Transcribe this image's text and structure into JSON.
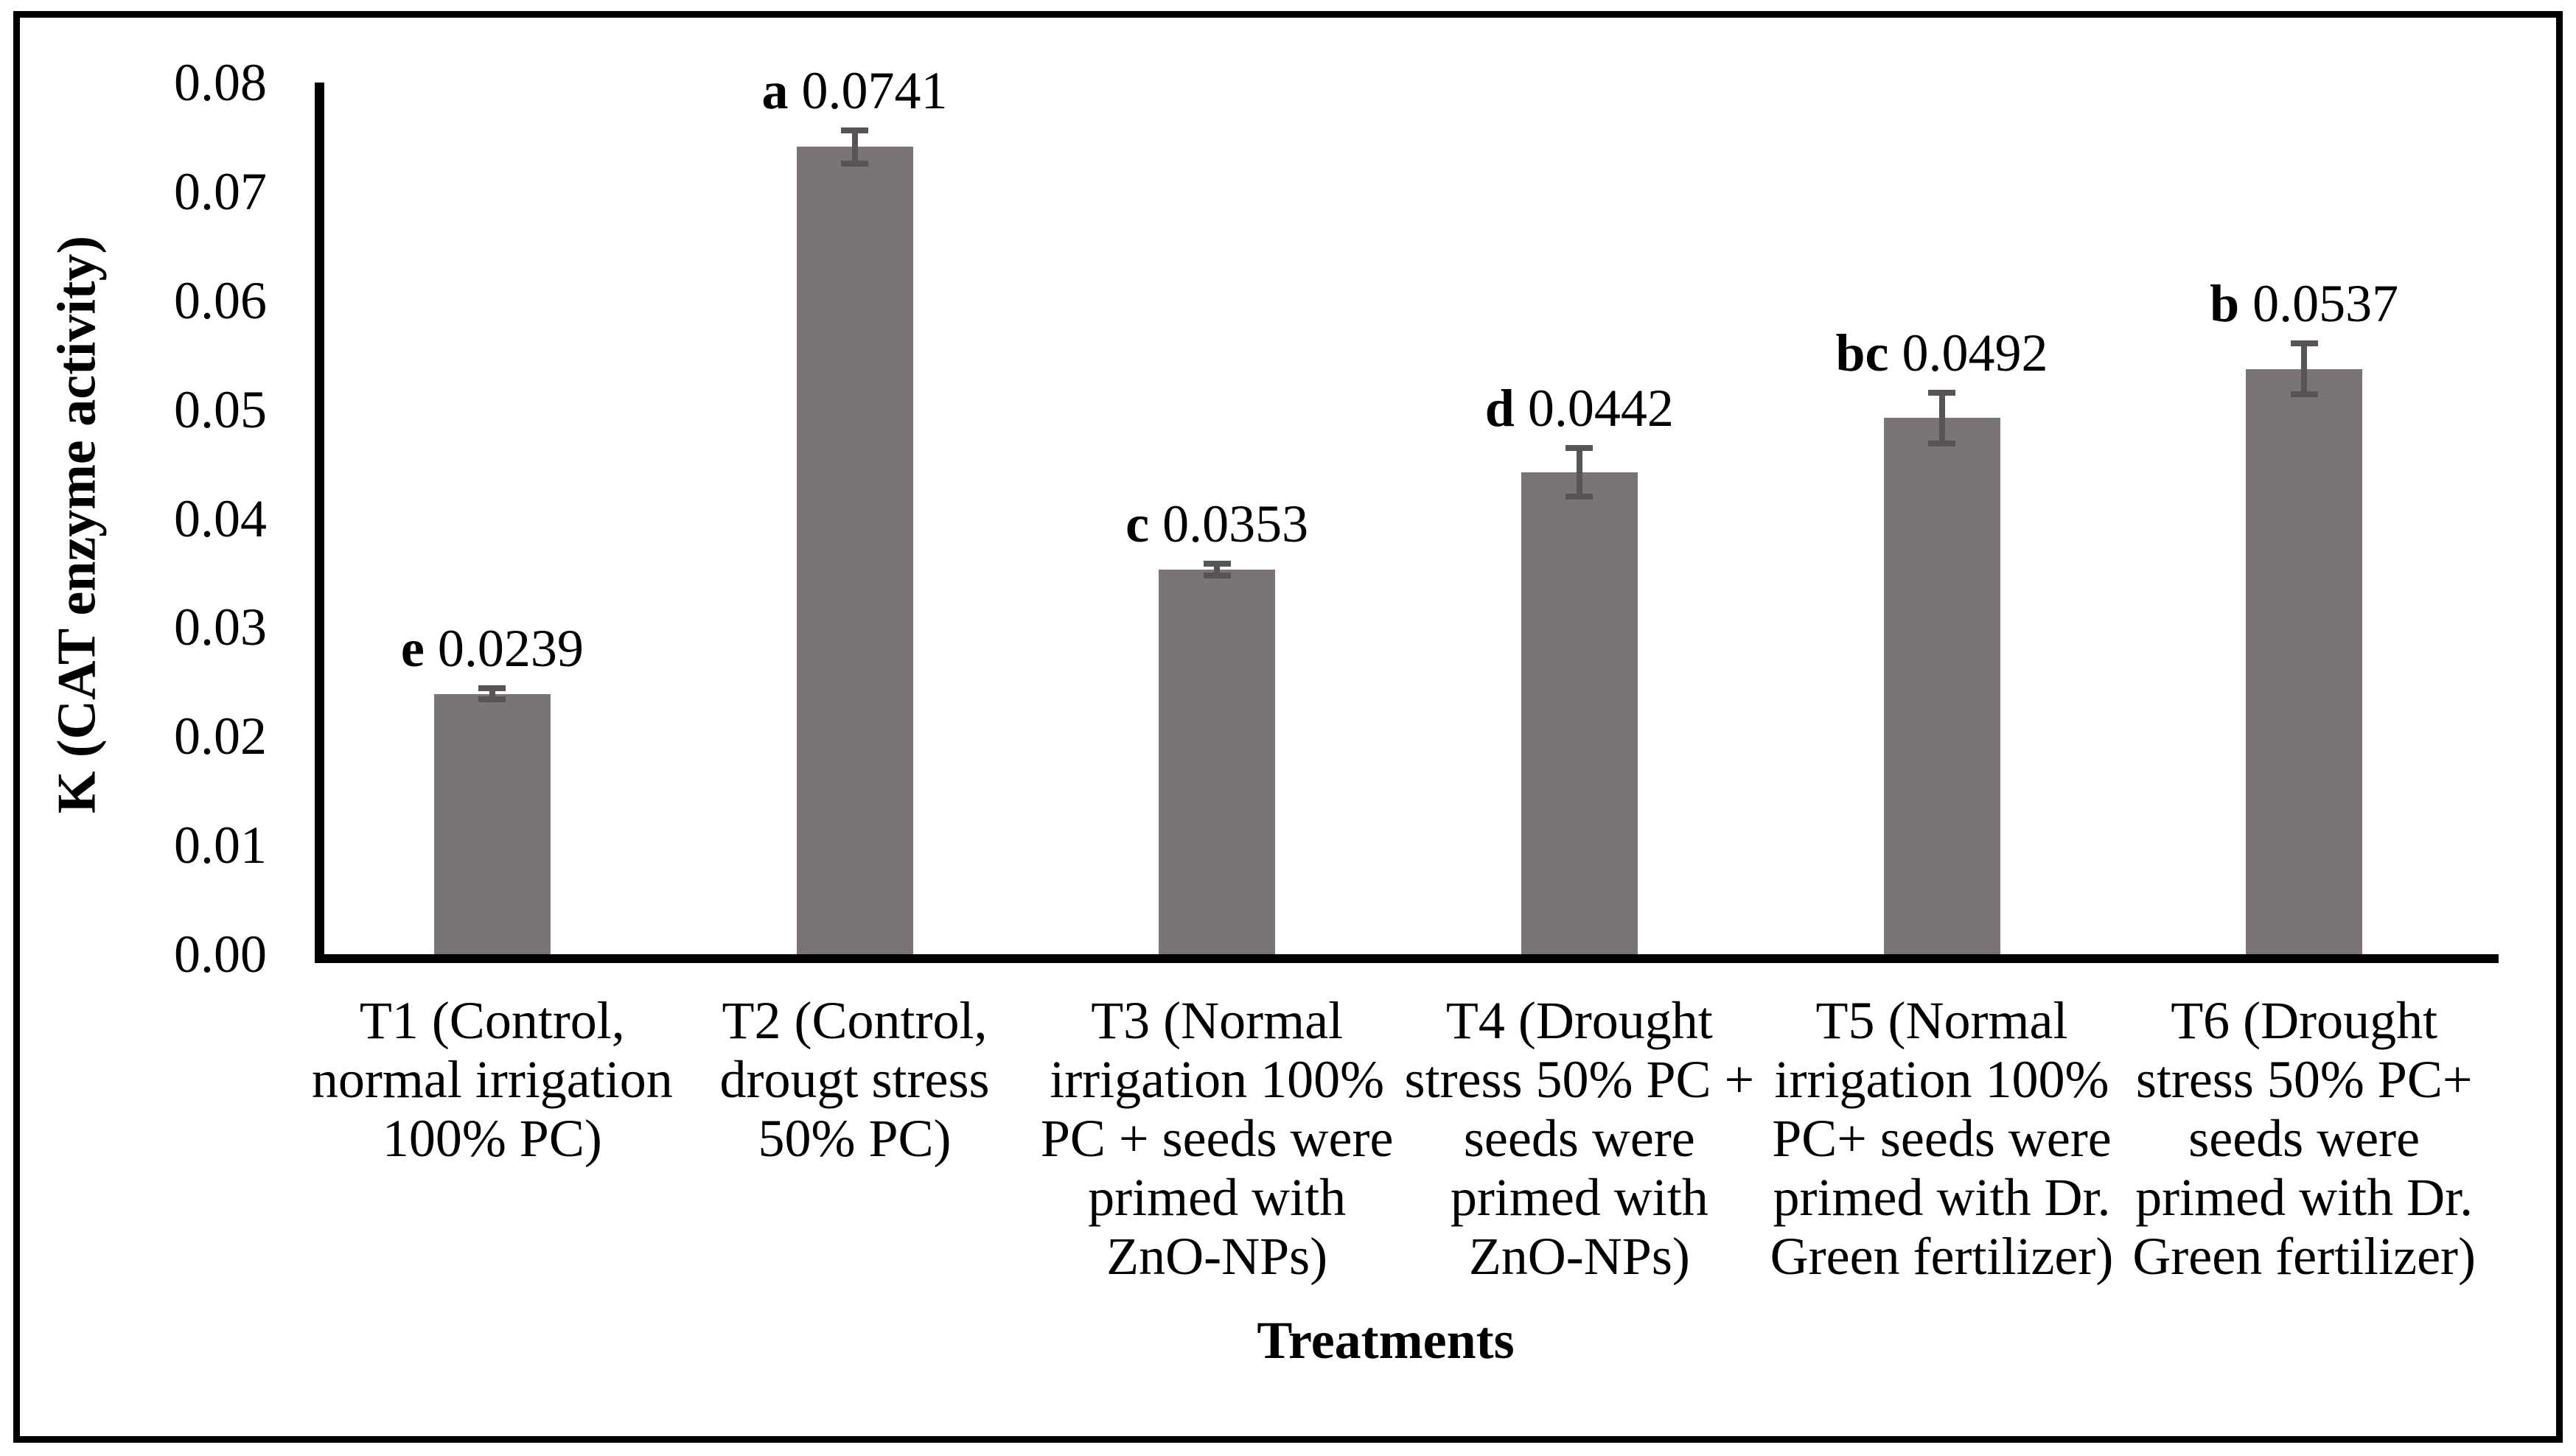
{
  "figure": {
    "background_color": "#ffffff",
    "border_color": "#000000",
    "text_color": "#000000"
  },
  "chart_data": {
    "type": "bar",
    "title": "",
    "xlabel": "Treatments",
    "ylabel": "K (CAT enzyme activity)",
    "ylim": [
      0,
      0.08
    ],
    "ytick_labels": [
      "0.00",
      "0.01",
      "0.02",
      "0.03",
      "0.04",
      "0.05",
      "0.06",
      "0.07",
      "0.08"
    ],
    "grid": false,
    "legend": false,
    "bar_color": "#7a7475",
    "error_color": "#585354",
    "categories": [
      "T1 (Control,\nnormal irrigation\n100% PC)",
      "T2 (Control,\ndrougt stress\n50% PC)",
      "T3 (Normal\nirrigation 100%\nPC + seeds were\nprimed with\nZnO-NPs)",
      "T4 (Drought\nstress 50% PC +\nseeds were\nprimed with\nZnO-NPs)",
      "T5 (Normal\nirrigation 100%\nPC+ seeds were\nprimed with Dr.\nGreen fertilizer)",
      "T6 (Drought\nstress 50% PC+\nseeds were\nprimed with Dr.\nGreen fertilizer)"
    ],
    "series": [
      {
        "name": "K (CAT enzyme activity)",
        "values": [
          0.0239,
          0.0741,
          0.0353,
          0.0442,
          0.0492,
          0.0537
        ],
        "value_labels": [
          "0.0239",
          "0.0741",
          "0.0353",
          "0.0442",
          "0.0492",
          "0.0537"
        ],
        "sig_letters": [
          "e",
          "a",
          "c",
          "d",
          "bc",
          "b"
        ],
        "errors": [
          0.0008,
          0.0018,
          0.0008,
          0.0025,
          0.0026,
          0.0026
        ]
      }
    ]
  }
}
